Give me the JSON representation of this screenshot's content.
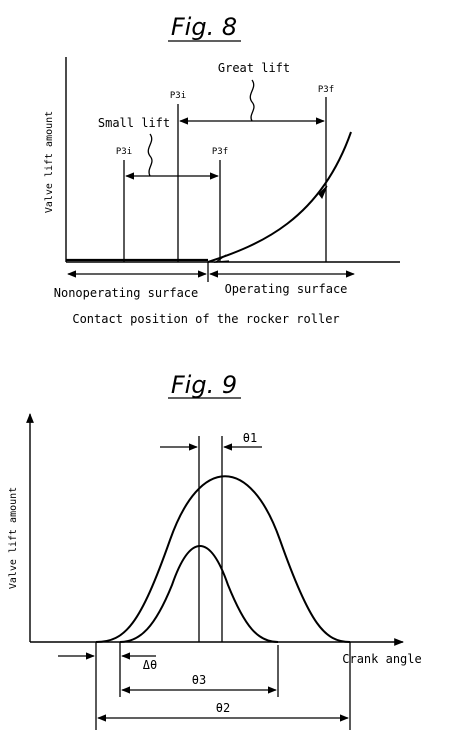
{
  "fig8": {
    "title": "Fig. 8",
    "ylabel": "Valve lift amount",
    "great_lift_label": "Great lift",
    "small_lift_label": "Small lift",
    "p3i_small": "P3i",
    "p3f_small": "P3f",
    "p3i_great": "P3i",
    "p3f_great": "P3f",
    "nonoperating_label": "Nonoperating surface",
    "operating_label": "Operating surface",
    "xlabel": "Contact position of the rocker roller"
  },
  "fig9": {
    "title": "Fig. 9",
    "ylabel": "Valve lift amount",
    "xlabel": "Crank angle",
    "theta1": "θ1",
    "theta2": "θ2",
    "theta3": "θ3",
    "delta_theta": "Δθ"
  }
}
